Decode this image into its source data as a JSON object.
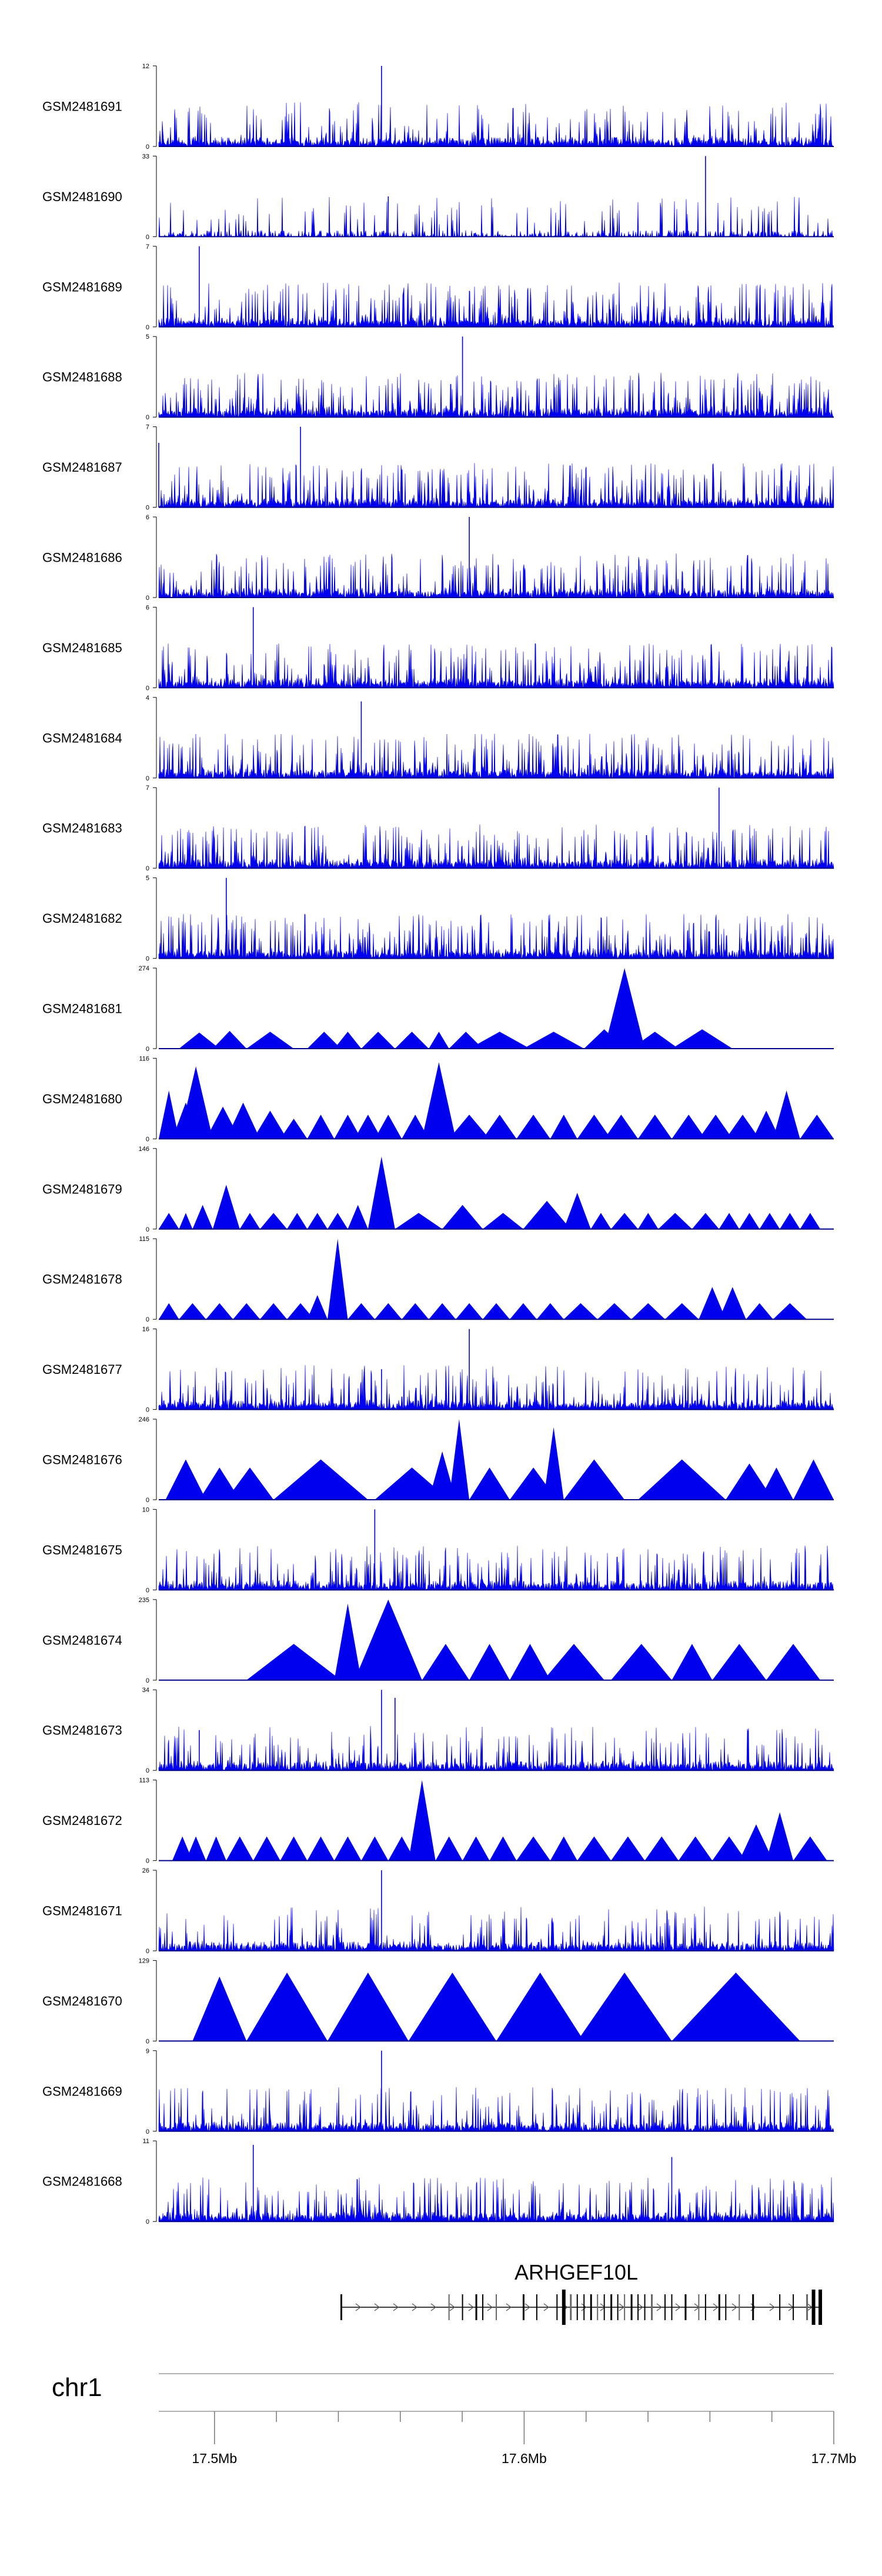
{
  "chart_data": {
    "type": "area",
    "title": "",
    "track_color": "#0000ee",
    "baseline_color": "#000000",
    "genomic_range_mb": [
      17.482,
      17.7
    ],
    "tracks": [
      {
        "name": "GSM2481691",
        "ymax": 12,
        "ymin": 0,
        "pattern": "dense",
        "density": 0.28,
        "seed": 11,
        "peaks": [
          [
            0.33,
            1.0
          ]
        ]
      },
      {
        "name": "GSM2481690",
        "ymax": 33,
        "ymin": 0,
        "pattern": "spiky",
        "density": 0.55,
        "seed": 12,
        "peaks": [
          [
            0.81,
            1.0
          ],
          [
            0.34,
            0.5
          ]
        ]
      },
      {
        "name": "GSM2481689",
        "ymax": 7,
        "ymin": 0,
        "pattern": "dense",
        "density": 0.35,
        "seed": 13,
        "peaks": [
          [
            0.06,
            1.0
          ]
        ]
      },
      {
        "name": "GSM2481688",
        "ymax": 5,
        "ymin": 0,
        "pattern": "dense",
        "density": 0.38,
        "seed": 14,
        "peaks": [
          [
            0.45,
            1.0
          ]
        ]
      },
      {
        "name": "GSM2481687",
        "ymax": 7,
        "ymin": 0,
        "pattern": "dense",
        "density": 0.35,
        "seed": 15,
        "peaks": [
          [
            0.21,
            1.0
          ],
          [
            0.0,
            0.8
          ]
        ]
      },
      {
        "name": "GSM2481686",
        "ymax": 6,
        "ymin": 0,
        "pattern": "dense",
        "density": 0.33,
        "seed": 16,
        "peaks": [
          [
            0.46,
            1.0
          ]
        ]
      },
      {
        "name": "GSM2481685",
        "ymax": 6,
        "ymin": 0,
        "pattern": "dense",
        "density": 0.32,
        "seed": 17,
        "peaks": [
          [
            0.14,
            1.0
          ]
        ]
      },
      {
        "name": "GSM2481684",
        "ymax": 4,
        "ymin": 0,
        "pattern": "dense",
        "density": 0.38,
        "seed": 18,
        "peaks": [
          [
            0.3,
            0.95
          ]
        ]
      },
      {
        "name": "GSM2481683",
        "ymax": 7,
        "ymin": 0,
        "pattern": "dense",
        "density": 0.32,
        "seed": 19,
        "peaks": [
          [
            0.83,
            1.0
          ]
        ]
      },
      {
        "name": "GSM2481682",
        "ymax": 5,
        "ymin": 0,
        "pattern": "dense",
        "density": 0.4,
        "seed": 20,
        "peaks": [
          [
            0.1,
            1.0
          ]
        ]
      },
      {
        "name": "GSM2481681",
        "ymax": 274,
        "ymin": 0,
        "pattern": "triangles",
        "seed": 21,
        "spans": [
          [
            0.03,
            0.09,
            0.2
          ],
          [
            0.08,
            0.13,
            0.22
          ],
          [
            0.13,
            0.2,
            0.21
          ],
          [
            0.22,
            0.27,
            0.21
          ],
          [
            0.26,
            0.3,
            0.21
          ],
          [
            0.3,
            0.35,
            0.21
          ],
          [
            0.35,
            0.4,
            0.21
          ],
          [
            0.4,
            0.43,
            0.21
          ],
          [
            0.43,
            0.48,
            0.21
          ],
          [
            0.46,
            0.55,
            0.21
          ],
          [
            0.54,
            0.63,
            0.21
          ],
          [
            0.63,
            0.69,
            0.24
          ],
          [
            0.66,
            0.72,
            1.0
          ],
          [
            0.7,
            0.77,
            0.21
          ],
          [
            0.76,
            0.85,
            0.24
          ]
        ]
      },
      {
        "name": "GSM2481680",
        "ymax": 116,
        "ymin": 0,
        "pattern": "triangles",
        "seed": 22,
        "spans": [
          [
            0.0,
            0.03,
            0.6
          ],
          [
            0.02,
            0.06,
            0.45
          ],
          [
            0.03,
            0.08,
            0.9
          ],
          [
            0.07,
            0.12,
            0.4
          ],
          [
            0.1,
            0.15,
            0.45
          ],
          [
            0.14,
            0.19,
            0.35
          ],
          [
            0.18,
            0.22,
            0.25
          ],
          [
            0.22,
            0.26,
            0.3
          ],
          [
            0.26,
            0.3,
            0.3
          ],
          [
            0.29,
            0.33,
            0.3
          ],
          [
            0.32,
            0.36,
            0.3
          ],
          [
            0.36,
            0.4,
            0.3
          ],
          [
            0.39,
            0.44,
            0.95
          ],
          [
            0.43,
            0.49,
            0.3
          ],
          [
            0.48,
            0.53,
            0.3
          ],
          [
            0.53,
            0.58,
            0.3
          ],
          [
            0.58,
            0.62,
            0.3
          ],
          [
            0.62,
            0.67,
            0.3
          ],
          [
            0.66,
            0.71,
            0.3
          ],
          [
            0.71,
            0.76,
            0.3
          ],
          [
            0.76,
            0.81,
            0.3
          ],
          [
            0.8,
            0.85,
            0.3
          ],
          [
            0.84,
            0.89,
            0.3
          ],
          [
            0.88,
            0.92,
            0.35
          ],
          [
            0.91,
            0.95,
            0.6
          ],
          [
            0.95,
            1.0,
            0.3
          ]
        ]
      },
      {
        "name": "GSM2481679",
        "ymax": 146,
        "ymin": 0,
        "pattern": "triangles",
        "seed": 23,
        "spans": [
          [
            0.0,
            0.03,
            0.2
          ],
          [
            0.03,
            0.05,
            0.2
          ],
          [
            0.05,
            0.08,
            0.3
          ],
          [
            0.08,
            0.12,
            0.55
          ],
          [
            0.12,
            0.15,
            0.2
          ],
          [
            0.15,
            0.19,
            0.2
          ],
          [
            0.19,
            0.22,
            0.2
          ],
          [
            0.22,
            0.25,
            0.2
          ],
          [
            0.25,
            0.28,
            0.2
          ],
          [
            0.28,
            0.31,
            0.3
          ],
          [
            0.31,
            0.35,
            0.9
          ],
          [
            0.35,
            0.42,
            0.2
          ],
          [
            0.42,
            0.48,
            0.3
          ],
          [
            0.48,
            0.54,
            0.2
          ],
          [
            0.54,
            0.61,
            0.35
          ],
          [
            0.6,
            0.64,
            0.45
          ],
          [
            0.64,
            0.67,
            0.2
          ],
          [
            0.67,
            0.71,
            0.2
          ],
          [
            0.71,
            0.74,
            0.2
          ],
          [
            0.74,
            0.79,
            0.2
          ],
          [
            0.79,
            0.83,
            0.2
          ],
          [
            0.83,
            0.86,
            0.2
          ],
          [
            0.86,
            0.89,
            0.2
          ],
          [
            0.89,
            0.92,
            0.2
          ],
          [
            0.92,
            0.95,
            0.2
          ],
          [
            0.95,
            0.98,
            0.2
          ]
        ]
      },
      {
        "name": "GSM2481678",
        "ymax": 115,
        "ymin": 0,
        "pattern": "triangles",
        "seed": 24,
        "spans": [
          [
            0.0,
            0.03,
            0.2
          ],
          [
            0.03,
            0.07,
            0.2
          ],
          [
            0.07,
            0.11,
            0.2
          ],
          [
            0.11,
            0.15,
            0.2
          ],
          [
            0.15,
            0.19,
            0.2
          ],
          [
            0.19,
            0.23,
            0.2
          ],
          [
            0.22,
            0.25,
            0.3
          ],
          [
            0.25,
            0.28,
            1.0
          ],
          [
            0.28,
            0.32,
            0.2
          ],
          [
            0.32,
            0.36,
            0.2
          ],
          [
            0.36,
            0.4,
            0.2
          ],
          [
            0.4,
            0.44,
            0.2
          ],
          [
            0.44,
            0.48,
            0.2
          ],
          [
            0.48,
            0.52,
            0.2
          ],
          [
            0.52,
            0.56,
            0.2
          ],
          [
            0.56,
            0.6,
            0.2
          ],
          [
            0.6,
            0.65,
            0.2
          ],
          [
            0.65,
            0.7,
            0.2
          ],
          [
            0.7,
            0.75,
            0.2
          ],
          [
            0.75,
            0.8,
            0.2
          ],
          [
            0.8,
            0.84,
            0.4
          ],
          [
            0.83,
            0.87,
            0.4
          ],
          [
            0.87,
            0.91,
            0.2
          ],
          [
            0.91,
            0.96,
            0.2
          ]
        ]
      },
      {
        "name": "GSM2481677",
        "ymax": 16,
        "ymin": 0,
        "pattern": "dense",
        "density": 0.3,
        "seed": 25,
        "peaks": [
          [
            0.46,
            1.0
          ],
          [
            0.33,
            0.5
          ]
        ]
      },
      {
        "name": "GSM2481676",
        "ymax": 246,
        "ymin": 0,
        "pattern": "triangles",
        "seed": 26,
        "spans": [
          [
            0.01,
            0.07,
            0.5
          ],
          [
            0.06,
            0.12,
            0.4
          ],
          [
            0.1,
            0.17,
            0.4
          ],
          [
            0.17,
            0.31,
            0.5
          ],
          [
            0.32,
            0.43,
            0.4
          ],
          [
            0.4,
            0.44,
            0.6
          ],
          [
            0.43,
            0.46,
            1.0
          ],
          [
            0.46,
            0.52,
            0.4
          ],
          [
            0.52,
            0.59,
            0.4
          ],
          [
            0.57,
            0.6,
            0.9
          ],
          [
            0.6,
            0.69,
            0.5
          ],
          [
            0.71,
            0.84,
            0.5
          ],
          [
            0.84,
            0.91,
            0.45
          ],
          [
            0.89,
            0.94,
            0.4
          ],
          [
            0.94,
            1.0,
            0.5
          ]
        ]
      },
      {
        "name": "GSM2481675",
        "ymax": 10,
        "ymin": 0,
        "pattern": "dense",
        "density": 0.3,
        "seed": 27,
        "peaks": [
          [
            0.32,
            1.0
          ]
        ]
      },
      {
        "name": "GSM2481674",
        "ymax": 235,
        "ymin": 0,
        "pattern": "triangles",
        "seed": 28,
        "spans": [
          [
            0.13,
            0.27,
            0.45
          ],
          [
            0.26,
            0.3,
            0.95
          ],
          [
            0.29,
            0.39,
            1.0
          ],
          [
            0.39,
            0.46,
            0.45
          ],
          [
            0.46,
            0.52,
            0.45
          ],
          [
            0.52,
            0.58,
            0.45
          ],
          [
            0.57,
            0.66,
            0.45
          ],
          [
            0.67,
            0.76,
            0.45
          ],
          [
            0.76,
            0.82,
            0.45
          ],
          [
            0.82,
            0.9,
            0.45
          ],
          [
            0.9,
            0.98,
            0.45
          ]
        ]
      },
      {
        "name": "GSM2481673",
        "ymax": 34,
        "ymin": 0,
        "pattern": "dense",
        "density": 0.25,
        "seed": 29,
        "peaks": [
          [
            0.33,
            1.0
          ],
          [
            0.35,
            0.9
          ],
          [
            0.06,
            0.5
          ]
        ]
      },
      {
        "name": "GSM2481672",
        "ymax": 113,
        "ymin": 0,
        "pattern": "triangles",
        "seed": 30,
        "spans": [
          [
            0.02,
            0.05,
            0.3
          ],
          [
            0.04,
            0.07,
            0.3
          ],
          [
            0.07,
            0.1,
            0.3
          ],
          [
            0.1,
            0.14,
            0.3
          ],
          [
            0.14,
            0.18,
            0.3
          ],
          [
            0.18,
            0.22,
            0.3
          ],
          [
            0.22,
            0.26,
            0.3
          ],
          [
            0.26,
            0.3,
            0.3
          ],
          [
            0.3,
            0.34,
            0.3
          ],
          [
            0.34,
            0.38,
            0.3
          ],
          [
            0.37,
            0.41,
            1.0
          ],
          [
            0.41,
            0.45,
            0.3
          ],
          [
            0.45,
            0.49,
            0.3
          ],
          [
            0.49,
            0.53,
            0.3
          ],
          [
            0.53,
            0.58,
            0.3
          ],
          [
            0.58,
            0.62,
            0.3
          ],
          [
            0.62,
            0.67,
            0.3
          ],
          [
            0.67,
            0.72,
            0.3
          ],
          [
            0.72,
            0.77,
            0.3
          ],
          [
            0.77,
            0.82,
            0.3
          ],
          [
            0.82,
            0.87,
            0.3
          ],
          [
            0.86,
            0.91,
            0.45
          ],
          [
            0.9,
            0.94,
            0.6
          ],
          [
            0.94,
            0.99,
            0.3
          ]
        ]
      },
      {
        "name": "GSM2481671",
        "ymax": 26,
        "ymin": 0,
        "pattern": "dense",
        "density": 0.25,
        "seed": 31,
        "peaks": [
          [
            0.33,
            1.0
          ]
        ]
      },
      {
        "name": "GSM2481670",
        "ymax": 129,
        "ymin": 0,
        "pattern": "triangles",
        "seed": 32,
        "spans": [
          [
            0.05,
            0.13,
            0.8
          ],
          [
            0.13,
            0.25,
            0.85
          ],
          [
            0.25,
            0.37,
            0.85
          ],
          [
            0.37,
            0.5,
            0.85
          ],
          [
            0.5,
            0.63,
            0.85
          ],
          [
            0.62,
            0.76,
            0.85
          ],
          [
            0.76,
            0.95,
            0.85
          ]
        ]
      },
      {
        "name": "GSM2481669",
        "ymax": 9,
        "ymin": 0,
        "pattern": "dense",
        "density": 0.28,
        "seed": 33,
        "peaks": [
          [
            0.33,
            1.0
          ]
        ]
      },
      {
        "name": "GSM2481668",
        "ymax": 11,
        "ymin": 0,
        "pattern": "dense",
        "density": 0.32,
        "seed": 34,
        "peaks": [
          [
            0.14,
            0.95
          ],
          [
            0.76,
            0.8
          ]
        ]
      }
    ],
    "gene": {
      "name": "ARHGEF10L",
      "strand": "+",
      "start_frac": 0.27,
      "end_frac": 0.98,
      "exons": [
        0.27,
        0.43,
        0.45,
        0.47,
        0.48,
        0.5,
        0.54,
        0.56,
        0.59,
        0.61,
        0.62,
        0.63,
        0.64,
        0.65,
        0.66,
        0.67,
        0.68,
        0.69,
        0.7,
        0.71,
        0.72,
        0.73,
        0.75,
        0.76,
        0.78,
        0.8,
        0.81,
        0.83,
        0.84,
        0.86,
        0.88,
        0.92,
        0.94,
        0.96,
        0.97,
        0.98
      ],
      "thick_exons": [
        0.6,
        0.97,
        0.98
      ]
    },
    "chromosome": "chr1",
    "axis": {
      "ticks_mb": [
        17.5,
        17.52,
        17.54,
        17.56,
        17.58,
        17.6,
        17.62,
        17.64,
        17.66,
        17.68,
        17.7
      ],
      "labels": [
        {
          "mb": 17.5,
          "text": "17.5Mb"
        },
        {
          "mb": 17.6,
          "text": "17.6Mb"
        },
        {
          "mb": 17.7,
          "text": "17.7Mb"
        }
      ]
    }
  }
}
